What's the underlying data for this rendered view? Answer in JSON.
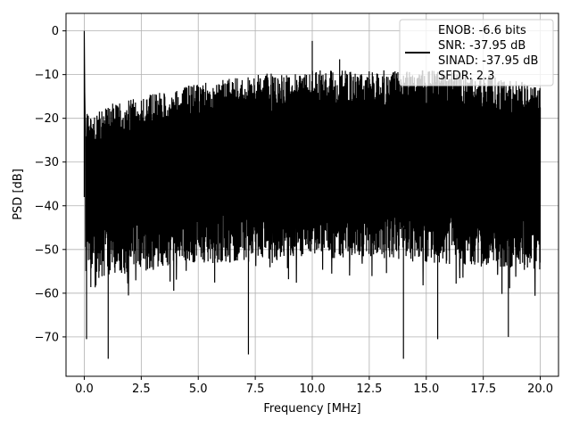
{
  "chart_data": {
    "type": "line",
    "xlabel": "Frequency [MHz]",
    "ylabel": "PSD [dB]",
    "xlim": [
      -0.8,
      20.8
    ],
    "ylim": [
      -79,
      4
    ],
    "grid": true,
    "x_ticks": [
      0.0,
      2.5,
      5.0,
      7.5,
      10.0,
      12.5,
      15.0,
      17.5,
      20.0
    ],
    "x_tick_labels": [
      "0.0",
      "2.5",
      "5.0",
      "7.5",
      "10.0",
      "12.5",
      "15.0",
      "17.5",
      "20.0"
    ],
    "y_ticks": [
      0,
      -10,
      -20,
      -30,
      -40,
      -50,
      -60,
      -70
    ],
    "y_tick_labels": [
      "0",
      "−10",
      "−20",
      "−30",
      "−40",
      "−50",
      "−60",
      "−70"
    ],
    "legend": {
      "placement": "top-right",
      "entries": [
        "ENOB: -6.6 bits",
        "SNR: -37.95 dB",
        "SINAD: -37.95 dB",
        "SFDR: 2.3"
      ]
    },
    "series": [
      {
        "color": "#000000",
        "x_range": [
          0,
          20
        ],
        "peak_at_dc_db": 0,
        "upper_envelope": [
          [
            0.15,
            -18
          ],
          [
            2.5,
            -15
          ],
          [
            5.0,
            -12
          ],
          [
            7.5,
            -10
          ],
          [
            10.0,
            -9
          ],
          [
            12.5,
            -9
          ],
          [
            15.0,
            -9
          ],
          [
            17.5,
            -10
          ],
          [
            20.0,
            -12
          ]
        ],
        "lower_envelope": [
          [
            0.15,
            -57
          ],
          [
            2.5,
            -55
          ],
          [
            5.0,
            -53
          ],
          [
            7.5,
            -53
          ],
          [
            10.0,
            -52
          ],
          [
            12.5,
            -52
          ],
          [
            15.0,
            -53
          ],
          [
            17.5,
            -54
          ],
          [
            20.0,
            -55
          ]
        ],
        "spurs": [
          [
            10.0,
            -2.3
          ],
          [
            11.2,
            -6.5
          ]
        ],
        "deep_nulls": [
          [
            0.1,
            -70.5
          ],
          [
            1.05,
            -75
          ],
          [
            7.2,
            -74
          ],
          [
            14.0,
            -75
          ],
          [
            15.5,
            -70.5
          ],
          [
            18.6,
            -70
          ]
        ]
      }
    ]
  }
}
